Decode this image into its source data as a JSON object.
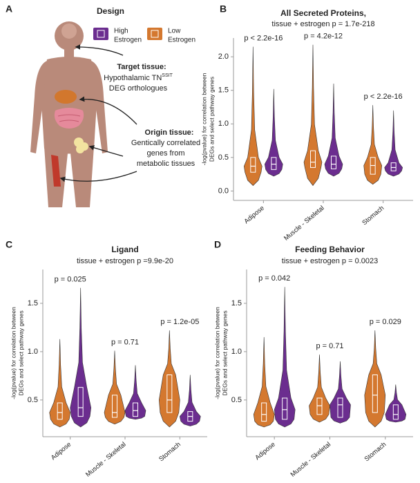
{
  "panel_a": {
    "label": "A",
    "title": "Design",
    "target_title": "Target tissue:",
    "target_line1": "Hypothalamic TN",
    "target_sup": "SSIT",
    "target_line2": "DEG orthologues",
    "origin_title": "Origin tissue:",
    "origin_lines": [
      "Gentically correlated",
      "genes from",
      "metabolic tissues"
    ]
  },
  "legend": [
    {
      "name": [
        "High",
        "Estrogen"
      ],
      "color": "#6b2d8f"
    },
    {
      "name": [
        "Low",
        "Estrogen"
      ],
      "color": "#d4782f"
    }
  ],
  "chart_data": [
    {
      "type": "violin",
      "panel_label": "B",
      "title": "All Secreted Proteins,",
      "subtitle": "tissue + estrogen p = 1.7e-218",
      "ylabel": [
        "-log(pvalue) for correlation between",
        "DEGs and select pathway genes"
      ],
      "categories": [
        "Adipose",
        "Muscle - Skeletal",
        "Stomach"
      ],
      "p_labels": [
        "p < 2.2e-16",
        "p = 4.2e-12",
        "p < 2.2e-16"
      ],
      "ylim": [
        -0.14,
        2.28
      ],
      "yticks": [
        {
          "value": 0,
          "label": "0.0"
        },
        0.5,
        {
          "value": 1,
          "label": "1.0"
        },
        1.5,
        {
          "value": 2,
          "label": "2.0"
        }
      ],
      "series": [
        {
          "color": "#d4782f",
          "min": [
            0.08,
            0.08,
            0.1
          ],
          "q1": [
            0.28,
            0.35,
            0.25
          ],
          "median": [
            0.37,
            0.43,
            0.38
          ],
          "q3": [
            0.5,
            0.6,
            0.5
          ],
          "max": [
            2.15,
            2.18,
            1.28
          ]
        },
        {
          "color": "#6b2d8f",
          "min": [
            0.22,
            0.22,
            0.22
          ],
          "q1": [
            0.32,
            0.33,
            0.3
          ],
          "median": [
            0.4,
            0.4,
            0.35
          ],
          "q3": [
            0.5,
            0.52,
            0.42
          ],
          "max": [
            1.52,
            1.6,
            1.2
          ]
        }
      ]
    },
    {
      "type": "violin",
      "panel_label": "C",
      "title": "Ligand",
      "subtitle": "tissue + estrogen p =9.9e-20",
      "ylabel": [
        "-log(pvalue) for correlation between",
        "DEGs and select pathway genes"
      ],
      "categories": [
        "Adipose",
        "Muscle - Skeletal",
        "Stomach"
      ],
      "p_labels": [
        "p = 0.025",
        "p = 0.71",
        "p = 1.2e-05"
      ],
      "ylim": [
        0.12,
        1.85
      ],
      "yticks": [
        0.5,
        {
          "value": 1,
          "label": "1.0"
        },
        1.5
      ],
      "series": [
        {
          "color": "#d4782f",
          "min": [
            0.22,
            0.25,
            0.22
          ],
          "q1": [
            0.3,
            0.32,
            0.37
          ],
          "median": [
            0.37,
            0.37,
            0.5
          ],
          "q3": [
            0.47,
            0.55,
            0.76
          ],
          "max": [
            1.13,
            1.01,
            1.22
          ]
        },
        {
          "color": "#6b2d8f",
          "min": [
            0.22,
            0.3,
            0.23
          ],
          "q1": [
            0.33,
            0.33,
            0.28
          ],
          "median": [
            0.42,
            0.39,
            0.33
          ],
          "q3": [
            0.63,
            0.47,
            0.38
          ],
          "max": [
            1.66,
            0.86,
            0.76
          ]
        }
      ]
    },
    {
      "type": "violin",
      "panel_label": "D",
      "title": "Feeding Behavior",
      "subtitle": "tissue + estrogen p = 0.0023",
      "ylabel": [
        "-log(pvalue) for correlation between",
        "DEGs and select pathway genes"
      ],
      "categories": [
        "Adipose",
        "Muscle - Skeletal",
        "Stomach"
      ],
      "p_labels": [
        "p = 0.042",
        "p = 0.71",
        "p = 0.029"
      ],
      "ylim": [
        0.12,
        1.85
      ],
      "yticks": [
        0.5,
        {
          "value": 1,
          "label": "1.0"
        },
        1.5
      ],
      "series": [
        {
          "color": "#d4782f",
          "min": [
            0.22,
            0.27,
            0.22
          ],
          "q1": [
            0.28,
            0.35,
            0.37
          ],
          "median": [
            0.35,
            0.44,
            0.55
          ],
          "q3": [
            0.47,
            0.52,
            0.76
          ],
          "max": [
            1.15,
            0.97,
            1.22
          ]
        },
        {
          "color": "#6b2d8f",
          "min": [
            0.22,
            0.26,
            0.27
          ],
          "q1": [
            0.3,
            0.32,
            0.3
          ],
          "median": [
            0.4,
            0.45,
            0.35
          ],
          "q3": [
            0.52,
            0.52,
            0.45
          ],
          "max": [
            1.67,
            0.9,
            0.66
          ]
        }
      ]
    }
  ]
}
